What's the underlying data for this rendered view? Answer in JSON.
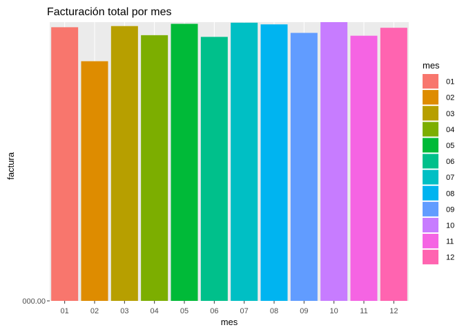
{
  "chart_data": {
    "type": "bar",
    "title": "Facturación total por mes",
    "xlabel": "mes",
    "ylabel": "factura",
    "categories": [
      "01",
      "02",
      "03",
      "04",
      "05",
      "06",
      "07",
      "08",
      "09",
      "10",
      "11",
      "12"
    ],
    "values": [
      402.5,
      352.5,
      404.2,
      390.8,
      407.5,
      388.3,
      409.2,
      406.7,
      394.2,
      410.0,
      390.0,
      401.7
    ],
    "ylim": [
      0,
      410
    ],
    "y_tick_label": "000.00",
    "colors": [
      "#F8766D",
      "#DE8C00",
      "#B79F00",
      "#7CAE00",
      "#00BA38",
      "#00C08B",
      "#00BFC4",
      "#00B4F0",
      "#619CFF",
      "#C77CFF",
      "#F564E3",
      "#FF64B0"
    ],
    "legend": {
      "title": "mes",
      "position": "right",
      "labels": [
        "01",
        "02",
        "03",
        "04",
        "05",
        "06",
        "07",
        "08",
        "09",
        "10",
        "11",
        "12"
      ]
    },
    "panel_background": "#EBEBEB",
    "grid": true
  }
}
